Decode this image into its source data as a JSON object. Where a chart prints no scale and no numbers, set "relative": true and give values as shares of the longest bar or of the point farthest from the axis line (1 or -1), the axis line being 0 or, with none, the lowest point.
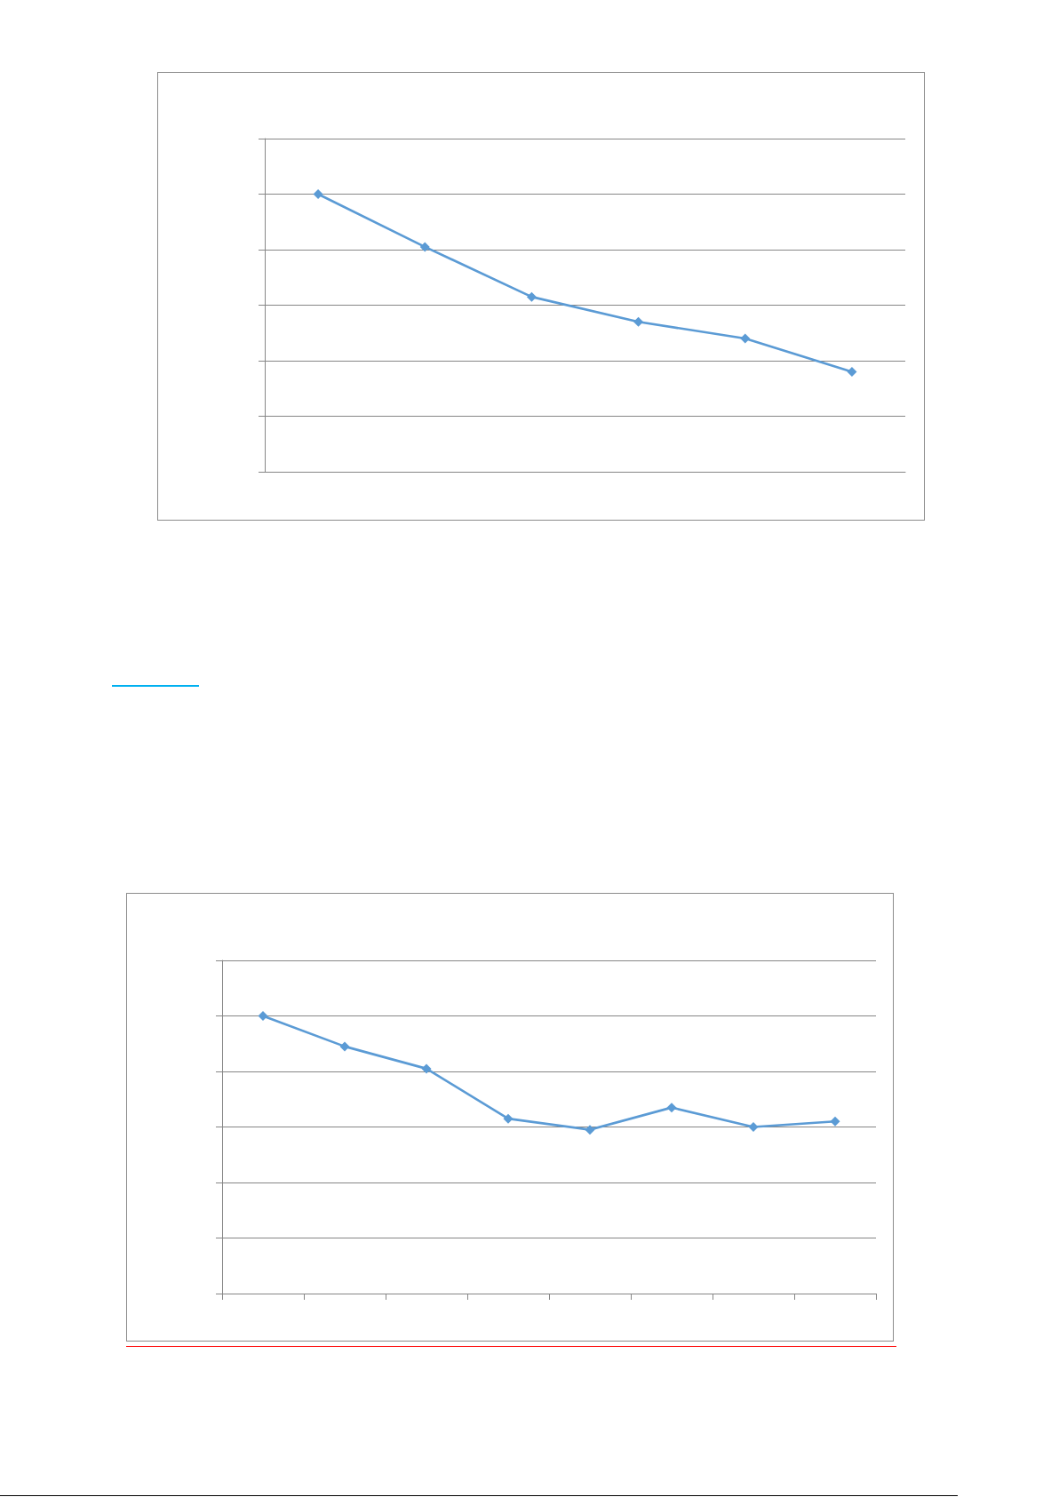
{
  "chart_data": [
    {
      "type": "line",
      "categories": [
        null,
        null,
        null,
        null,
        null,
        null
      ],
      "values": [
        1,
        0.81,
        0.63,
        0.54,
        0.48,
        0.36
      ],
      "color": "#5b9bd5",
      "relative": true,
      "grid": "y",
      "marker": "diamond",
      "tick_labels": false
    },
    {
      "type": "line",
      "categories": [
        null,
        null,
        null,
        null,
        null,
        null,
        null,
        null
      ],
      "values": [
        1,
        0.89,
        0.81,
        0.63,
        0.59,
        0.67,
        0.6,
        0.62
      ],
      "color": "#5b9bd5",
      "relative": true,
      "grid": "y",
      "marker": "diamond",
      "tick_labels": false
    }
  ]
}
